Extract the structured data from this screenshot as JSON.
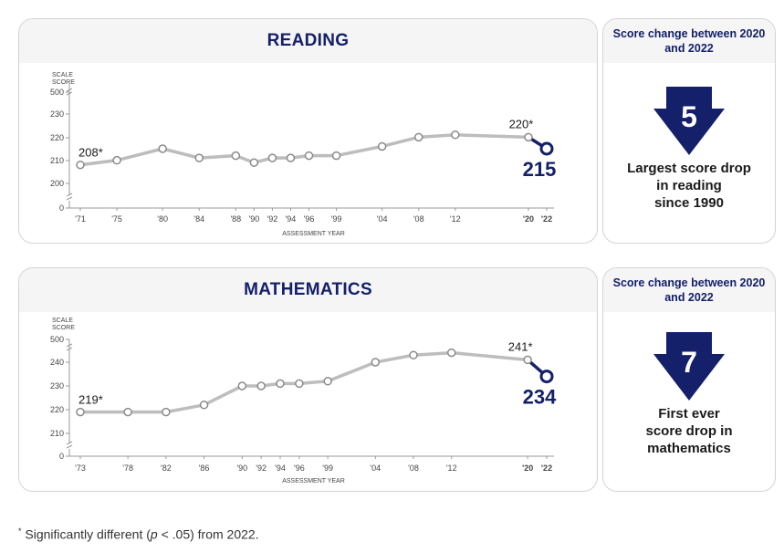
{
  "colors": {
    "navy": "#14206a",
    "line": "#bdbdbd",
    "axis": "#9a9a9a"
  },
  "charts": [
    {
      "title": "READING",
      "scale_label": [
        "SCALE",
        "SCORE"
      ],
      "xlabel": "ASSESSMENT YEAR",
      "side_title": "Score change between 2020 and 2022",
      "arrow_icon": "down-arrow-icon",
      "change_value": "5",
      "side_text": [
        "Largest score drop",
        "in reading",
        "since 1990"
      ]
    },
    {
      "title": "MATHEMATICS",
      "scale_label": [
        "SCALE",
        "SCORE"
      ],
      "xlabel": "ASSESSMENT YEAR",
      "side_title": "Score change between 2020 and 2022",
      "arrow_icon": "down-arrow-icon",
      "change_value": "7",
      "side_text": [
        "First ever",
        "score drop in",
        "mathematics"
      ]
    }
  ],
  "chart_data": [
    {
      "type": "line",
      "title": "READING",
      "xlabel": "ASSESSMENT YEAR",
      "ylabel": "SCALE SCORE",
      "y_ticks": [
        "0",
        "200",
        "210",
        "220",
        "230",
        "500"
      ],
      "y_break": true,
      "ylim": [
        195,
        235
      ],
      "x_tick_labels": [
        "'71",
        "'75",
        "'80",
        "'84",
        "'88",
        "'90",
        "'92",
        "'94",
        "'96",
        "'99",
        "'04",
        "'08",
        "'12",
        "'20",
        "'22"
      ],
      "x": [
        1971,
        1975,
        1980,
        1984,
        1988,
        1990,
        1992,
        1994,
        1996,
        1999,
        2004,
        2008,
        2012,
        2020,
        2022
      ],
      "values": [
        208,
        210,
        215,
        211,
        212,
        209,
        211,
        211,
        212,
        212,
        216,
        220,
        221,
        220,
        215
      ],
      "annotations": [
        {
          "x": 1971,
          "label": "208*"
        },
        {
          "x": 2020,
          "label": "220*"
        },
        {
          "x": 2022,
          "label": "215"
        }
      ],
      "highlight_last": true,
      "grid": false
    },
    {
      "type": "line",
      "title": "MATHEMATICS",
      "xlabel": "ASSESSMENT YEAR",
      "ylabel": "SCALE SCORE",
      "y_ticks": [
        "0",
        "210",
        "220",
        "230",
        "240",
        "500"
      ],
      "y_break": true,
      "ylim": [
        205,
        250
      ],
      "x_tick_labels": [
        "'73",
        "'78",
        "'82",
        "'86",
        "'90",
        "'92",
        "'94",
        "'96",
        "'99",
        "'04",
        "'08",
        "'12",
        "'20",
        "'22"
      ],
      "x": [
        1973,
        1978,
        1982,
        1986,
        1990,
        1992,
        1994,
        1996,
        1999,
        2004,
        2008,
        2012,
        2020,
        2022
      ],
      "values": [
        219,
        219,
        219,
        222,
        230,
        230,
        231,
        231,
        232,
        240,
        243,
        244,
        241,
        234
      ],
      "annotations": [
        {
          "x": 1973,
          "label": "219*"
        },
        {
          "x": 2020,
          "label": "241*"
        },
        {
          "x": 2022,
          "label": "234"
        }
      ],
      "highlight_last": true,
      "grid": false
    }
  ],
  "footnote": {
    "mark": "*",
    "pre": " Significantly different (",
    "italic": "p",
    "post": " < .05) from 2022."
  }
}
